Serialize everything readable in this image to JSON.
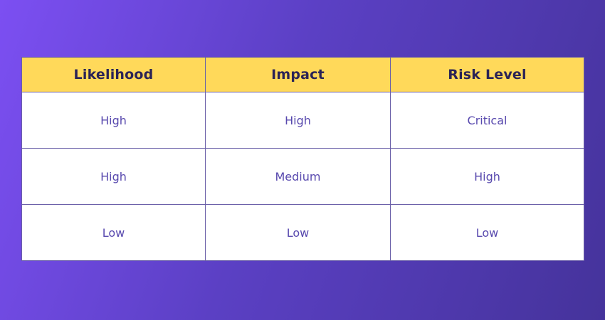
{
  "table": {
    "columns": [
      "Likelihood",
      "Impact",
      "Risk Level"
    ],
    "rows": [
      [
        "High",
        "High",
        "Critical"
      ],
      [
        "High",
        "Medium",
        "High"
      ],
      [
        "Low",
        "Low",
        "Low"
      ]
    ]
  },
  "colors": {
    "background_start": "#7C4FF2",
    "background_end": "#45339B",
    "header_bg": "#FFD95A",
    "header_text": "#2A2356",
    "cell_text": "#5849AE",
    "border": "#6A5FA8"
  }
}
